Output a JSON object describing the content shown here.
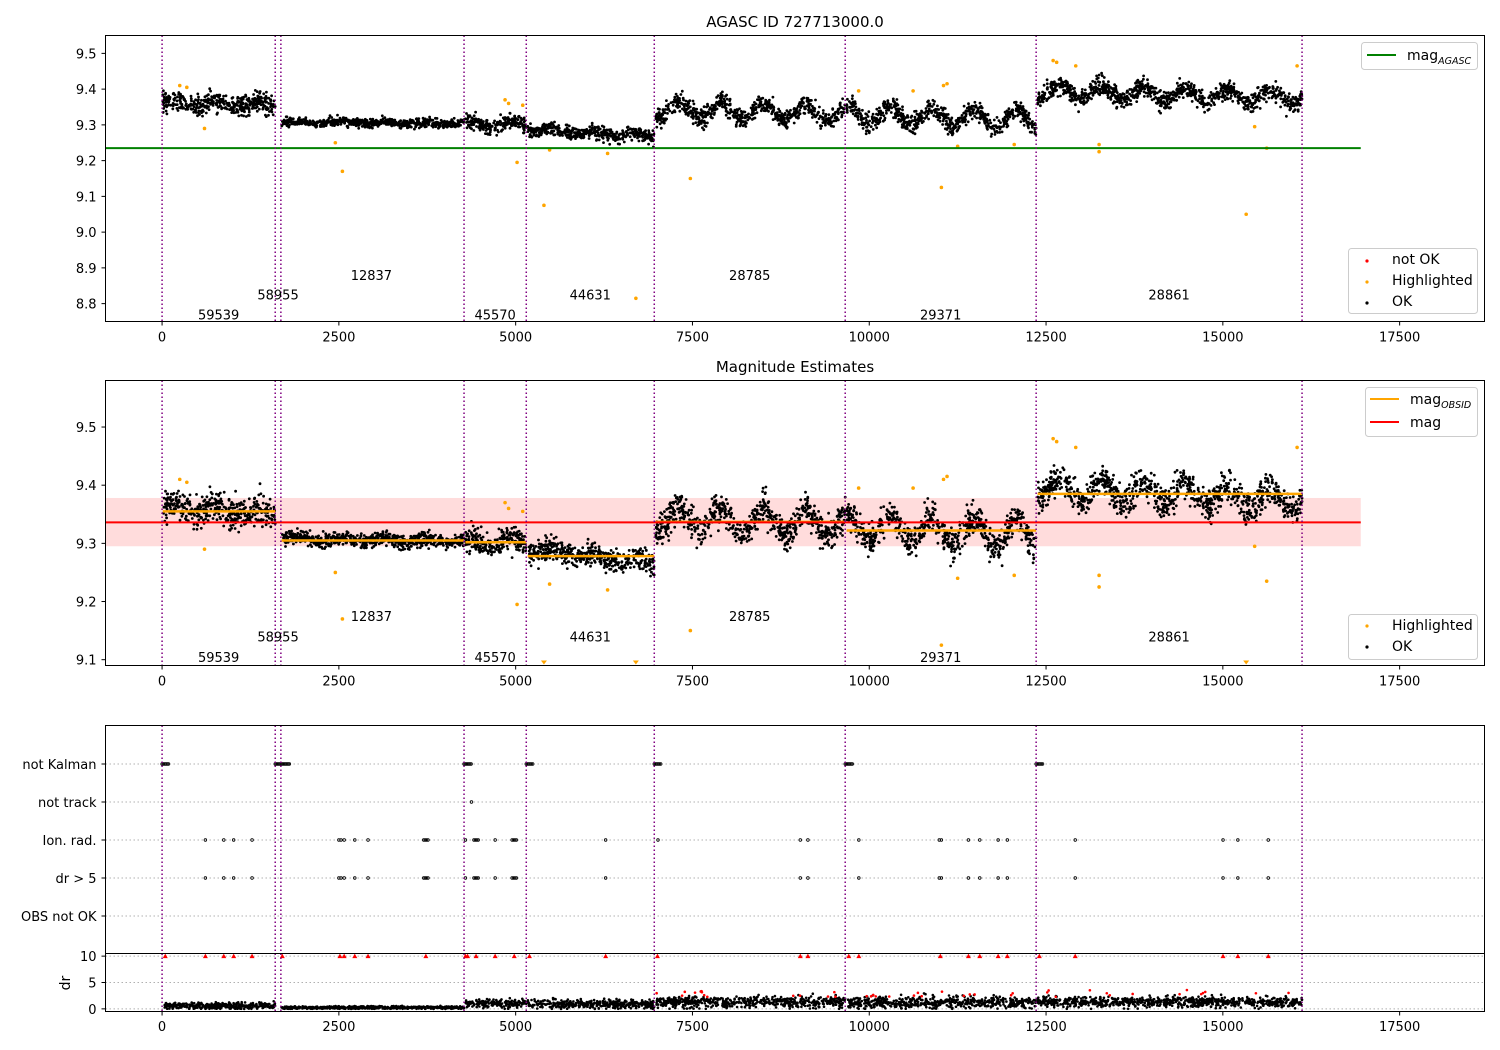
{
  "figure": {
    "background": "#ffffff",
    "colors": {
      "ok": "#000000",
      "highlighted": "#ffa500",
      "not_ok": "#ff0000",
      "agasc_line": "#008000",
      "obsid_mag": "#ffa500",
      "mean_mag": "#ff0000",
      "mag_band": "#ffc0c0",
      "obsid_boundary": "#800080",
      "flag_grid": "#b0b0b0"
    }
  },
  "chart_data": [
    {
      "type": "scatter",
      "title": "AGASC ID 727713000.0",
      "xlim": [
        -800,
        18700
      ],
      "ylim": [
        8.75,
        9.55
      ],
      "xticks": [
        0,
        2500,
        5000,
        7500,
        10000,
        12500,
        15000,
        17500
      ],
      "yticks": [
        8.8,
        8.9,
        9.0,
        9.1,
        9.2,
        9.3,
        9.4,
        9.5
      ],
      "legend_top": {
        "position": "top-right",
        "entries": [
          {
            "label": "mag",
            "subscript": "AGASC",
            "color": "#008000",
            "marker": "line"
          }
        ]
      },
      "legend_bottom": {
        "position": "bottom-right",
        "entries": [
          {
            "label": "not OK",
            "color": "#ff0000",
            "marker": "dot"
          },
          {
            "label": "Highlighted",
            "color": "#ffa500",
            "marker": "dot"
          },
          {
            "label": "OK",
            "color": "#000000",
            "marker": "dot"
          }
        ]
      },
      "mag_agasc": {
        "value": 9.235,
        "x_range": [
          -800,
          16950
        ]
      },
      "obsid_boundaries": [
        0,
        1600,
        1680,
        4270,
        5150,
        6960,
        9660,
        12360,
        16120
      ],
      "obsid_labels": [
        {
          "text": "59539",
          "x": 800,
          "y": 8.77
        },
        {
          "text": "58955",
          "x": 1640,
          "y": 8.825
        },
        {
          "text": "12837",
          "x": 2960,
          "y": 8.88
        },
        {
          "text": "45570",
          "x": 4710,
          "y": 8.77
        },
        {
          "text": "44631",
          "x": 6055,
          "y": 8.825
        },
        {
          "text": "28785",
          "x": 8310,
          "y": 8.88
        },
        {
          "text": "29371",
          "x": 11010,
          "y": 8.77
        },
        {
          "text": "28861",
          "x": 14240,
          "y": 8.825
        }
      ],
      "segments": [
        {
          "x": [
            10,
            1600
          ],
          "mean": 9.358,
          "spread": 0.022,
          "slope": -0.008,
          "osc": 0.008
        },
        {
          "x": [
            1690,
            4270
          ],
          "mean": 9.306,
          "spread": 0.01,
          "slope": -0.004,
          "osc": 0.003
        },
        {
          "x": [
            4290,
            5150
          ],
          "mean": 9.302,
          "spread": 0.018,
          "slope": 0.0,
          "osc": 0.008
        },
        {
          "x": [
            5170,
            6960
          ],
          "mean": 9.278,
          "spread": 0.016,
          "slope": -0.02,
          "osc": 0.006
        },
        {
          "x": [
            6980,
            9660
          ],
          "mean": 9.338,
          "spread": 0.022,
          "slope": -0.01,
          "osc": 0.022
        },
        {
          "x": [
            9680,
            12360
          ],
          "mean": 9.322,
          "spread": 0.022,
          "slope": -0.015,
          "osc": 0.025
        },
        {
          "x": [
            12380,
            16120
          ],
          "mean": 9.385,
          "spread": 0.022,
          "slope": -0.02,
          "osc": 0.018
        }
      ],
      "highlighted_points": [
        [
          600,
          9.29
        ],
        [
          2550,
          9.17
        ],
        [
          2450,
          9.25
        ],
        [
          5020,
          9.195
        ],
        [
          5400,
          9.075
        ],
        [
          5480,
          9.23
        ],
        [
          6700,
          8.815
        ],
        [
          6300,
          9.22
        ],
        [
          7470,
          9.15
        ],
        [
          11020,
          9.125
        ],
        [
          11050,
          9.41
        ],
        [
          11100,
          9.415
        ],
        [
          11250,
          9.24
        ],
        [
          12050,
          9.245
        ],
        [
          13250,
          9.245
        ],
        [
          13250,
          9.225
        ],
        [
          15330,
          9.05
        ],
        [
          15450,
          9.295
        ],
        [
          15620,
          9.235
        ],
        [
          12600,
          9.48
        ],
        [
          12650,
          9.475
        ],
        [
          12920,
          9.465
        ],
        [
          16050,
          9.465
        ],
        [
          4850,
          9.37
        ],
        [
          4900,
          9.36
        ],
        [
          250,
          9.41
        ],
        [
          350,
          9.405
        ],
        [
          5100,
          9.355
        ],
        [
          9850,
          9.395
        ],
        [
          10620,
          9.395
        ]
      ]
    },
    {
      "type": "scatter",
      "title": "Magnitude Estimates",
      "xlim": [
        -800,
        18700
      ],
      "ylim": [
        9.09,
        9.58
      ],
      "xticks": [
        0,
        2500,
        5000,
        7500,
        10000,
        12500,
        15000,
        17500
      ],
      "yticks": [
        9.1,
        9.2,
        9.3,
        9.4,
        9.5
      ],
      "legend_top": {
        "position": "top-right",
        "entries": [
          {
            "label": "mag",
            "subscript": "OBSID",
            "color": "#ffa500",
            "marker": "line"
          },
          {
            "label": "mag",
            "subscript": "",
            "color": "#ff0000",
            "marker": "line"
          }
        ]
      },
      "legend_bottom": {
        "position": "bottom-right",
        "entries": [
          {
            "label": "Highlighted",
            "color": "#ffa500",
            "marker": "dot"
          },
          {
            "label": "OK",
            "color": "#000000",
            "marker": "dot"
          }
        ]
      },
      "mag_mean": {
        "value": 9.336,
        "band": [
          9.295,
          9.378
        ],
        "x_range": [
          -800,
          16950
        ]
      },
      "mag_obsid": [
        {
          "x": [
            10,
            1600
          ],
          "value": 9.355
        },
        {
          "x": [
            1690,
            4270
          ],
          "value": 9.305
        },
        {
          "x": [
            4290,
            5150
          ],
          "value": 9.302
        },
        {
          "x": [
            5170,
            6960
          ],
          "value": 9.278
        },
        {
          "x": [
            6980,
            9660
          ],
          "value": 9.337
        },
        {
          "x": [
            9680,
            12360
          ],
          "value": 9.322
        },
        {
          "x": [
            12380,
            16120
          ],
          "value": 9.385
        }
      ],
      "obsid_labels": [
        {
          "text": "59539",
          "x": 800,
          "y": 9.105
        },
        {
          "text": "58955",
          "x": 1640,
          "y": 9.14
        },
        {
          "text": "12837",
          "x": 2960,
          "y": 9.175
        },
        {
          "text": "45570",
          "x": 4710,
          "y": 9.105
        },
        {
          "text": "44631",
          "x": 6055,
          "y": 9.14
        },
        {
          "text": "28785",
          "x": 8310,
          "y": 9.175
        },
        {
          "text": "29371",
          "x": 11010,
          "y": 9.105
        },
        {
          "text": "28861",
          "x": 14240,
          "y": 9.14
        }
      ]
    },
    {
      "type": "scatter",
      "title": "",
      "xlim": [
        -800,
        18700
      ],
      "xticks": [
        0,
        2500,
        5000,
        7500,
        10000,
        12500,
        15000,
        17500
      ],
      "flag_rows": [
        "not Kalman",
        "not track",
        "Ion. rad.",
        "dr > 5",
        "OBS not OK"
      ],
      "flags": {
        "not Kalman": [
          [
            0,
            90
          ],
          [
            1600,
            1800
          ],
          [
            4270,
            4370
          ],
          [
            5150,
            5240
          ],
          [
            6960,
            7050
          ],
          [
            9660,
            9760
          ],
          [
            12360,
            12450
          ]
        ],
        "not track": [
          [
            4370,
            4380
          ]
        ],
        "Ion. rad.": [
          [
            610,
            615
          ],
          [
            870,
            875
          ],
          [
            1010,
            1015
          ],
          [
            1270,
            1275
          ],
          [
            2500,
            2530
          ],
          [
            2570,
            2580
          ],
          [
            2720,
            2730
          ],
          [
            2910,
            2915
          ],
          [
            3700,
            3760
          ],
          [
            4280,
            4300
          ],
          [
            4410,
            4470
          ],
          [
            4700,
            4720
          ],
          [
            4950,
            5010
          ],
          [
            6270,
            6275
          ],
          [
            7010,
            7015
          ],
          [
            9020,
            9030
          ],
          [
            9130,
            9135
          ],
          [
            9850,
            9855
          ],
          [
            10990,
            11020
          ],
          [
            11400,
            11405
          ],
          [
            11560,
            11565
          ],
          [
            11820,
            11825
          ],
          [
            11950,
            11955
          ],
          [
            12910,
            12915
          ],
          [
            15000,
            15005
          ],
          [
            15210,
            15215
          ],
          [
            15640,
            15645
          ]
        ],
        "dr > 5": [
          [
            610,
            615
          ],
          [
            870,
            875
          ],
          [
            1010,
            1015
          ],
          [
            1270,
            1275
          ],
          [
            2500,
            2530
          ],
          [
            2570,
            2580
          ],
          [
            2720,
            2730
          ],
          [
            2910,
            2915
          ],
          [
            3700,
            3760
          ],
          [
            4280,
            4300
          ],
          [
            4410,
            4470
          ],
          [
            4700,
            4720
          ],
          [
            4950,
            5010
          ],
          [
            6270,
            6275
          ],
          [
            9020,
            9030
          ],
          [
            9130,
            9135
          ],
          [
            9850,
            9855
          ],
          [
            10990,
            11020
          ],
          [
            11400,
            11405
          ],
          [
            11560,
            11565
          ],
          [
            11820,
            11825
          ],
          [
            11950,
            11955
          ],
          [
            12910,
            12915
          ],
          [
            15000,
            15005
          ],
          [
            15210,
            15215
          ],
          [
            15640,
            15645
          ]
        ],
        "OBS not OK": []
      },
      "dr_ylabel": "dr",
      "dr_ylim": [
        -0.5,
        10.5
      ],
      "dr_yticks": [
        0,
        5,
        10
      ],
      "dr_segments": [
        {
          "x": [
            30,
            1600
          ],
          "mean": 0.6,
          "spread": 0.45
        },
        {
          "x": [
            1690,
            4270
          ],
          "mean": 0.25,
          "spread": 0.2
        },
        {
          "x": [
            4290,
            5150
          ],
          "mean": 1.0,
          "spread": 0.6
        },
        {
          "x": [
            5170,
            6960
          ],
          "mean": 0.9,
          "spread": 0.6
        },
        {
          "x": [
            6980,
            9660
          ],
          "mean": 1.3,
          "spread": 0.8
        },
        {
          "x": [
            9680,
            12360
          ],
          "mean": 1.2,
          "spread": 0.8
        },
        {
          "x": [
            12380,
            16120
          ],
          "mean": 1.3,
          "spread": 0.7
        }
      ],
      "dr_capped_at": 10
    }
  ]
}
